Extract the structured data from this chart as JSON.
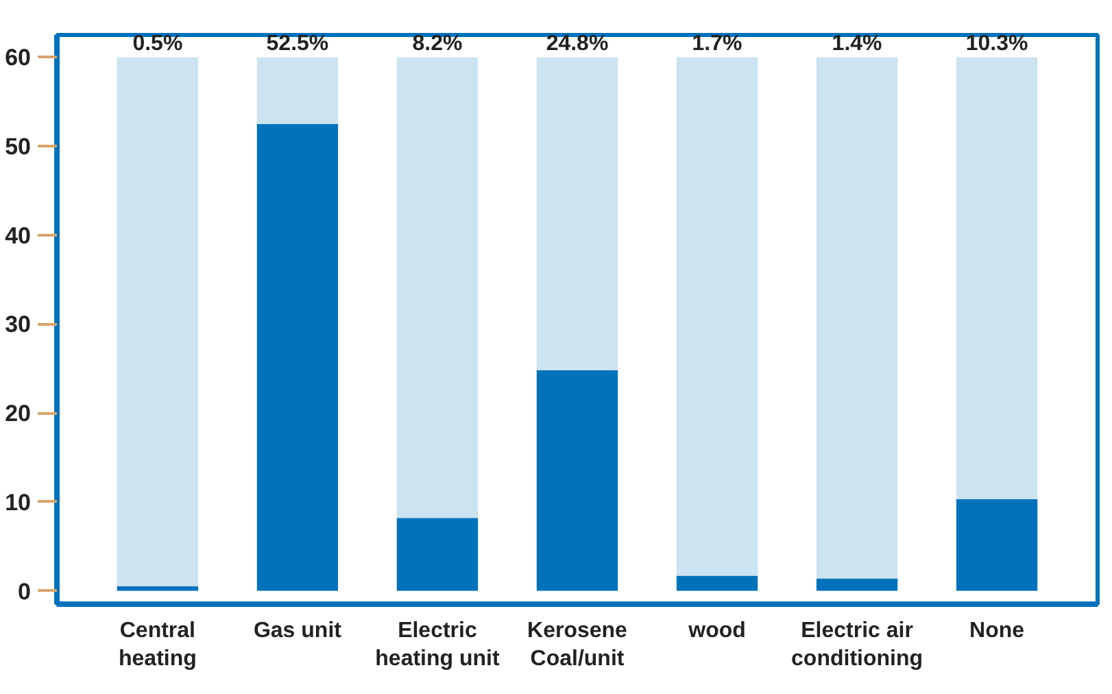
{
  "chart_data": {
    "type": "bar",
    "stacked": true,
    "categories": [
      "Central\nheating",
      "Gas unit",
      "Electric\nheating unit",
      "Kerosene\nCoal/unit",
      "wood",
      "Electric air\nconditioning",
      "None"
    ],
    "series": [
      {
        "color": "#0072bc",
        "values": [
          0.5,
          52.5,
          8.2,
          24.8,
          1.7,
          1.4,
          10.3
        ]
      },
      {
        "color": "#cce3f1",
        "values": [
          59.5,
          7.5,
          51.8,
          35.2,
          58.3,
          58.6,
          49.7
        ]
      }
    ],
    "annotations": [
      "0.5%",
      "52.5%",
      "8.2%",
      "24.8%",
      "1.7%",
      "1.4%",
      "10.3%"
    ],
    "ylim": [
      -1.5,
      62.5
    ],
    "yticks": [
      0,
      10,
      20,
      30,
      40,
      50,
      60
    ],
    "grid": false
  }
}
